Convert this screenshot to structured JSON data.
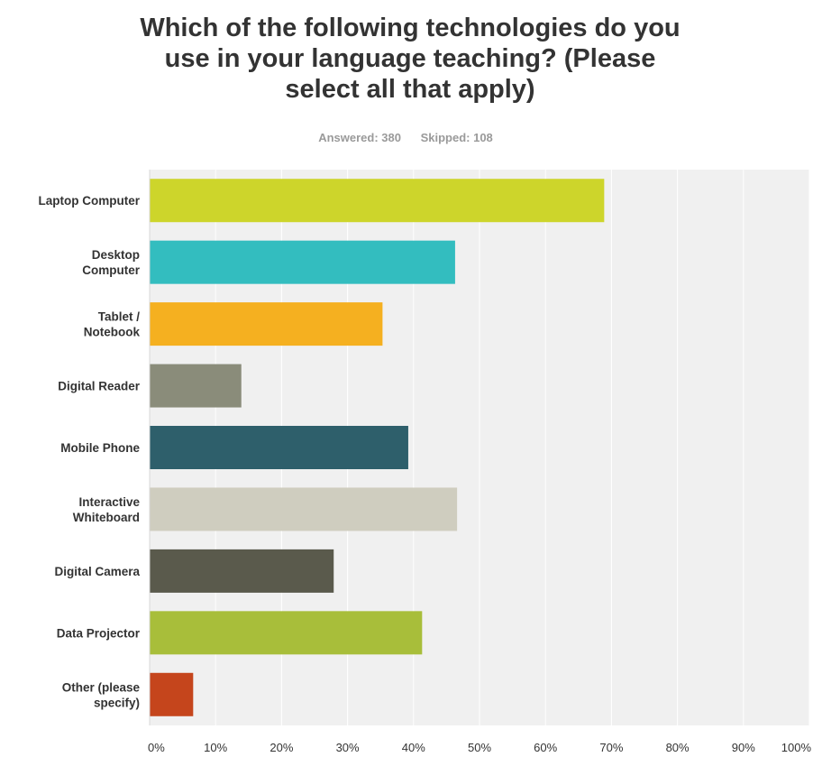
{
  "title_line1": "Which of the following technologies do you",
  "title_line2": "use in your language teaching? (Please",
  "title_line3": "select all that apply)",
  "answered_label": "Answered: 380",
  "skipped_label": "Skipped: 108",
  "chart_data": {
    "type": "bar",
    "orientation": "horizontal",
    "title": "Which of the following technologies do you use in your language teaching? (Please select all that apply)",
    "categories": [
      [
        "Laptop Computer"
      ],
      [
        "Desktop",
        "Computer"
      ],
      [
        "Tablet /",
        "Notebook"
      ],
      [
        "Digital Reader"
      ],
      [
        "Mobile Phone"
      ],
      [
        "Interactive",
        "Whiteboard"
      ],
      [
        "Digital Camera"
      ],
      [
        "Data Projector"
      ],
      [
        "Other (please",
        "specify)"
      ]
    ],
    "values": [
      68.9,
      46.3,
      35.3,
      13.9,
      39.2,
      46.6,
      27.9,
      41.3,
      6.6
    ],
    "colors": [
      "#cdd52b",
      "#33bdbf",
      "#f5b020",
      "#8a8c7a",
      "#2e5f6b",
      "#cfcdbf",
      "#5a5a4c",
      "#a8be3a",
      "#c5451c"
    ],
    "xlim": [
      0,
      100
    ],
    "tick_labels": [
      "0%",
      "10%",
      "20%",
      "30%",
      "40%",
      "50%",
      "60%",
      "70%",
      "80%",
      "90%",
      "100%"
    ],
    "grid": true,
    "plot_background": "#f0f0f0"
  }
}
